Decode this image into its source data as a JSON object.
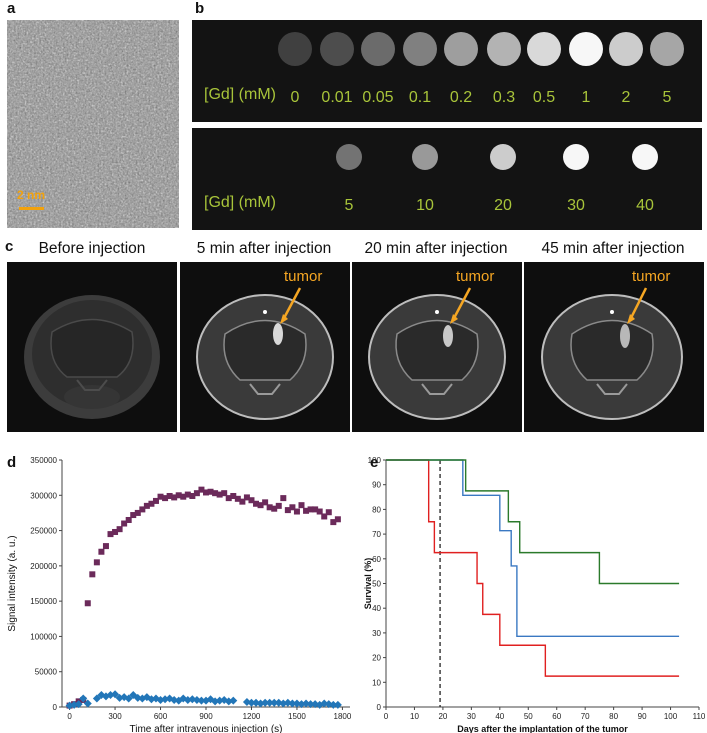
{
  "panel_labels": {
    "a": "a",
    "b": "b",
    "c": "c",
    "d": "d",
    "e": "e"
  },
  "panel_a": {
    "scale_label": "2 nm"
  },
  "panel_b": {
    "row1": {
      "label": "[Gd] (mM)",
      "values": [
        "0",
        "0.01",
        "0.05",
        "0.1",
        "0.2",
        "0.3",
        "0.5",
        "1",
        "2",
        "5"
      ],
      "brightness": [
        0.25,
        0.3,
        0.42,
        0.5,
        0.62,
        0.7,
        0.85,
        0.97,
        0.8,
        0.65
      ]
    },
    "row2": {
      "label": "[Gd]  (mM)",
      "values": [
        "5",
        "10",
        "20",
        "30",
        "40"
      ],
      "brightness": [
        0.45,
        0.6,
        0.8,
        0.97,
        0.97
      ]
    }
  },
  "panel_c": {
    "titles": [
      "Before injection",
      "5 min after injection",
      "20 min after injection",
      "45 min after injection"
    ],
    "tumor_label": "tumor"
  },
  "chart_data": [
    {
      "type": "scatter",
      "panel": "d",
      "xlabel": "Time after intravenous injection (s)",
      "ylabel": "Signal intensity (a. u.)",
      "xlim": [
        -50,
        1850
      ],
      "ylim": [
        0,
        350000
      ],
      "xticks": [
        0,
        300,
        600,
        900,
        1200,
        1500,
        1800
      ],
      "yticks": [
        0,
        50000,
        100000,
        150000,
        200000,
        250000,
        300000,
        350000
      ],
      "series": [
        {
          "name": "series-purple",
          "color": "#6b2a5a",
          "marker": "square",
          "x": [
            0,
            30,
            60,
            90,
            120,
            150,
            180,
            210,
            240,
            270,
            300,
            330,
            360,
            390,
            420,
            450,
            480,
            510,
            540,
            570,
            600,
            630,
            660,
            690,
            720,
            750,
            780,
            810,
            840,
            870,
            900,
            930,
            960,
            990,
            1020,
            1050,
            1080,
            1110,
            1140,
            1170,
            1200,
            1230,
            1260,
            1290,
            1320,
            1350,
            1380,
            1410,
            1440,
            1470,
            1500,
            1530,
            1560,
            1590,
            1620,
            1650,
            1680,
            1710,
            1740,
            1770
          ],
          "y": [
            2000,
            4000,
            8000,
            10000,
            147000,
            188000,
            205000,
            220000,
            228000,
            245000,
            248000,
            252000,
            260000,
            265000,
            272000,
            275000,
            280000,
            285000,
            288000,
            292000,
            298000,
            296000,
            299000,
            297000,
            300000,
            298000,
            301000,
            299000,
            303000,
            308000,
            304000,
            305000,
            303000,
            301000,
            303000,
            296000,
            299000,
            295000,
            291000,
            297000,
            293000,
            288000,
            286000,
            290000,
            283000,
            281000,
            285000,
            296000,
            279000,
            283000,
            277000,
            286000,
            278000,
            280000,
            280000,
            277000,
            270000,
            276000,
            262000,
            266000
          ]
        },
        {
          "name": "series-blue",
          "color": "#2276b8",
          "marker": "diamond",
          "x": [
            0,
            30,
            60,
            90,
            120,
            180,
            210,
            240,
            270,
            300,
            330,
            360,
            390,
            420,
            450,
            480,
            510,
            540,
            570,
            600,
            630,
            660,
            690,
            720,
            750,
            780,
            810,
            840,
            870,
            900,
            930,
            960,
            990,
            1020,
            1050,
            1080,
            1170,
            1200,
            1230,
            1260,
            1290,
            1320,
            1350,
            1380,
            1410,
            1440,
            1470,
            1500,
            1530,
            1560,
            1590,
            1620,
            1650,
            1680,
            1710,
            1740,
            1770
          ],
          "y": [
            2000,
            3000,
            4000,
            12000,
            5000,
            12000,
            17000,
            15000,
            17000,
            18000,
            13000,
            14000,
            12000,
            17000,
            13000,
            12000,
            14000,
            11000,
            12000,
            10000,
            11000,
            12000,
            10000,
            9000,
            12000,
            10000,
            11000,
            10000,
            9000,
            9000,
            11000,
            8000,
            9000,
            10000,
            8000,
            9000,
            7000,
            6000,
            6000,
            5000,
            6000,
            6000,
            6000,
            6000,
            5000,
            6000,
            5000,
            5000,
            4000,
            5000,
            4000,
            4000,
            3000,
            5000,
            4000,
            3000,
            3000
          ]
        }
      ]
    },
    {
      "type": "line",
      "panel": "e",
      "xlabel": "Days after the implantation of the tumor",
      "ylabel": "Survival (%)",
      "xlim": [
        0,
        110
      ],
      "ylim": [
        0,
        100
      ],
      "xticks": [
        0,
        10,
        20,
        30,
        40,
        50,
        60,
        70,
        80,
        90,
        100,
        110
      ],
      "yticks": [
        0,
        10,
        20,
        30,
        40,
        50,
        60,
        70,
        80,
        90,
        100
      ],
      "vline_x": 19,
      "series": [
        {
          "name": "survival-red",
          "color": "#e02020",
          "steps": [
            [
              0,
              100
            ],
            [
              15,
              100
            ],
            [
              15,
              75
            ],
            [
              17,
              75
            ],
            [
              17,
              62.5
            ],
            [
              32,
              62.5
            ],
            [
              32,
              50
            ],
            [
              34,
              50
            ],
            [
              34,
              37.5
            ],
            [
              40,
              37.5
            ],
            [
              40,
              25
            ],
            [
              56,
              25
            ],
            [
              56,
              12.5
            ],
            [
              103,
              12.5
            ]
          ]
        },
        {
          "name": "survival-blue",
          "color": "#3a78c2",
          "steps": [
            [
              0,
              100
            ],
            [
              27,
              100
            ],
            [
              27,
              85.7
            ],
            [
              40,
              85.7
            ],
            [
              40,
              71.4
            ],
            [
              44,
              71.4
            ],
            [
              44,
              57.1
            ],
            [
              46,
              57.1
            ],
            [
              46,
              28.6
            ],
            [
              103,
              28.6
            ]
          ]
        },
        {
          "name": "survival-green",
          "color": "#2b7a2b",
          "steps": [
            [
              0,
              100
            ],
            [
              28,
              100
            ],
            [
              28,
              87.5
            ],
            [
              43,
              87.5
            ],
            [
              43,
              75
            ],
            [
              47,
              75
            ],
            [
              47,
              62.5
            ],
            [
              75,
              62.5
            ],
            [
              75,
              50
            ],
            [
              103,
              50
            ]
          ]
        }
      ]
    }
  ]
}
